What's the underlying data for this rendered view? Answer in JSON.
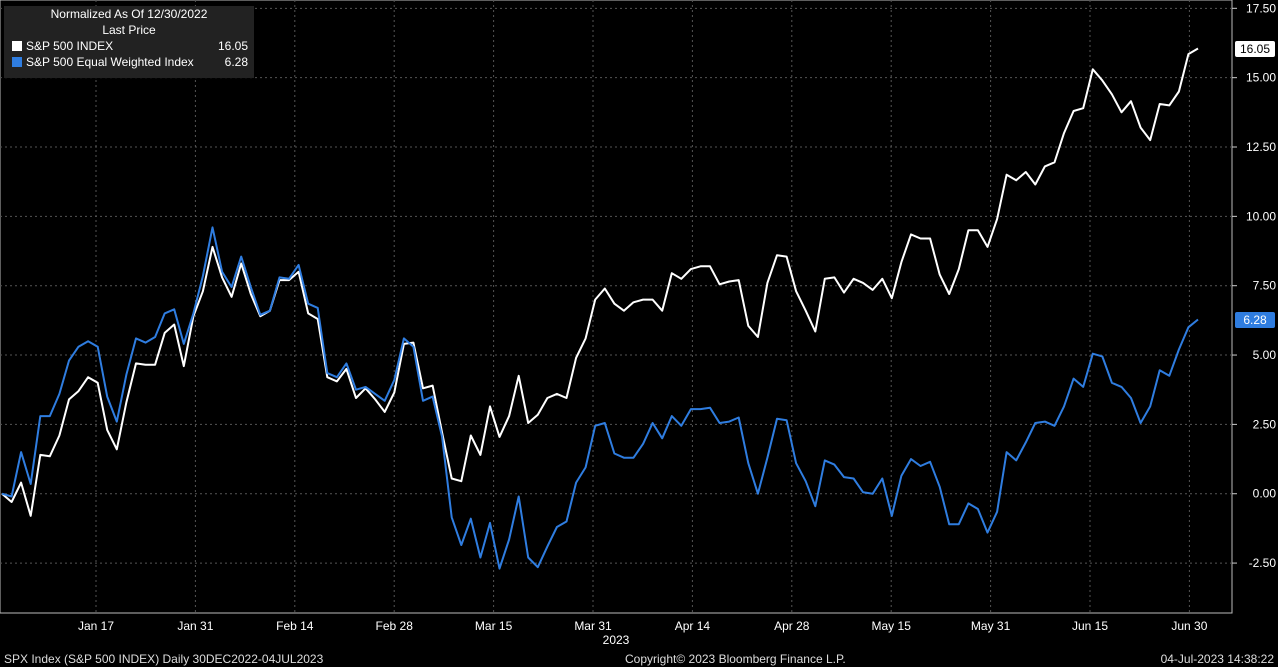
{
  "legend": {
    "header1": "Normalized As Of 12/30/2022",
    "header2": "Last Price",
    "items": [
      {
        "name": "S&P 500 INDEX",
        "value": "16.05",
        "color": "#ffffff"
      },
      {
        "name": "S&P 500 Equal Weighted Index",
        "value": "6.28",
        "color": "#2f7de0"
      }
    ]
  },
  "footer": {
    "left": "SPX Index (S&P 500 INDEX)  Daily 30DEC2022-04JUL2023",
    "center": "Copyright© 2023 Bloomberg Finance L.P.",
    "right": "04-Jul-2023 14:38:22"
  },
  "chart_data": {
    "type": "line",
    "x_tick_labels": [
      "Jan 17",
      "Jan 31",
      "Feb 14",
      "Feb 28",
      "Mar 15",
      "Mar 31",
      "Apr 14",
      "Apr 28",
      "May 15",
      "May 31",
      "Jun 15",
      "Jun 30"
    ],
    "x_year_label": "2023",
    "y_ticks": [
      "-2.50",
      "0.00",
      "2.50",
      "5.00",
      "7.50",
      "10.00",
      "12.50",
      "15.00",
      "17.50"
    ],
    "ylim": [
      -4.3,
      17.8
    ],
    "grid": true,
    "legend_position": "top-left",
    "series": [
      {
        "name": "S&P 500 INDEX",
        "color": "#ffffff",
        "last_value_label": "16.05",
        "values": [
          0.0,
          -0.3,
          0.4,
          -0.8,
          1.4,
          1.35,
          2.1,
          3.4,
          3.7,
          4.2,
          4.0,
          2.3,
          1.6,
          3.3,
          4.7,
          4.65,
          4.65,
          5.8,
          6.1,
          4.6,
          6.4,
          7.3,
          8.9,
          7.8,
          7.1,
          8.3,
          7.2,
          6.4,
          6.6,
          7.7,
          7.7,
          8.0,
          6.5,
          6.3,
          4.2,
          4.05,
          4.5,
          3.45,
          3.8,
          3.4,
          2.95,
          3.65,
          5.4,
          5.45,
          3.8,
          3.9,
          2.2,
          0.55,
          0.45,
          2.1,
          1.4,
          3.15,
          2.05,
          2.8,
          4.25,
          2.55,
          2.85,
          3.45,
          3.6,
          3.45,
          4.9,
          5.6,
          7.0,
          7.4,
          6.85,
          6.6,
          6.9,
          7.0,
          7.0,
          6.6,
          7.95,
          7.75,
          8.1,
          8.2,
          8.2,
          7.55,
          7.65,
          7.7,
          6.05,
          5.65,
          7.6,
          8.6,
          8.55,
          7.3,
          6.6,
          5.85,
          7.75,
          7.8,
          7.25,
          7.75,
          7.6,
          7.35,
          7.75,
          7.05,
          8.35,
          9.35,
          9.2,
          9.2,
          7.9,
          7.2,
          8.1,
          9.5,
          9.5,
          8.9,
          9.9,
          11.5,
          11.3,
          11.6,
          11.15,
          11.8,
          11.95,
          13.0,
          13.8,
          13.9,
          15.3,
          14.9,
          14.4,
          13.75,
          14.15,
          13.2,
          12.75,
          14.05,
          14.0,
          14.5,
          15.85,
          16.05
        ]
      },
      {
        "name": "S&P 500 Equal Weighted Index",
        "color": "#2f7de0",
        "last_value_label": "6.28",
        "values": [
          0.0,
          -0.1,
          1.5,
          0.35,
          2.8,
          2.8,
          3.6,
          4.8,
          5.3,
          5.5,
          5.3,
          3.5,
          2.6,
          4.3,
          5.6,
          5.45,
          5.65,
          6.5,
          6.65,
          5.4,
          6.5,
          7.85,
          9.6,
          8.0,
          7.45,
          8.55,
          7.45,
          6.45,
          6.6,
          7.8,
          7.75,
          8.25,
          6.85,
          6.7,
          4.35,
          4.2,
          4.7,
          3.75,
          3.85,
          3.6,
          3.35,
          4.1,
          5.6,
          5.3,
          3.35,
          3.5,
          2.05,
          -0.85,
          -1.85,
          -0.9,
          -2.3,
          -1.05,
          -2.7,
          -1.65,
          -0.1,
          -2.3,
          -2.65,
          -1.9,
          -1.2,
          -1.0,
          0.4,
          0.95,
          2.45,
          2.55,
          1.45,
          1.3,
          1.3,
          1.8,
          2.55,
          2.0,
          2.8,
          2.45,
          3.05,
          3.05,
          3.1,
          2.55,
          2.6,
          2.75,
          1.1,
          0.0,
          1.3,
          2.7,
          2.65,
          1.1,
          0.45,
          -0.45,
          1.2,
          1.05,
          0.6,
          0.55,
          0.05,
          0.0,
          0.55,
          -0.8,
          0.65,
          1.25,
          1.0,
          1.15,
          0.25,
          -1.1,
          -1.1,
          -0.35,
          -0.55,
          -1.4,
          -0.65,
          1.5,
          1.2,
          1.85,
          2.55,
          2.6,
          2.45,
          3.15,
          4.15,
          3.85,
          5.05,
          4.95,
          4.0,
          3.85,
          3.45,
          2.55,
          3.15,
          4.45,
          4.25,
          5.2,
          6.0,
          6.28
        ]
      }
    ]
  }
}
